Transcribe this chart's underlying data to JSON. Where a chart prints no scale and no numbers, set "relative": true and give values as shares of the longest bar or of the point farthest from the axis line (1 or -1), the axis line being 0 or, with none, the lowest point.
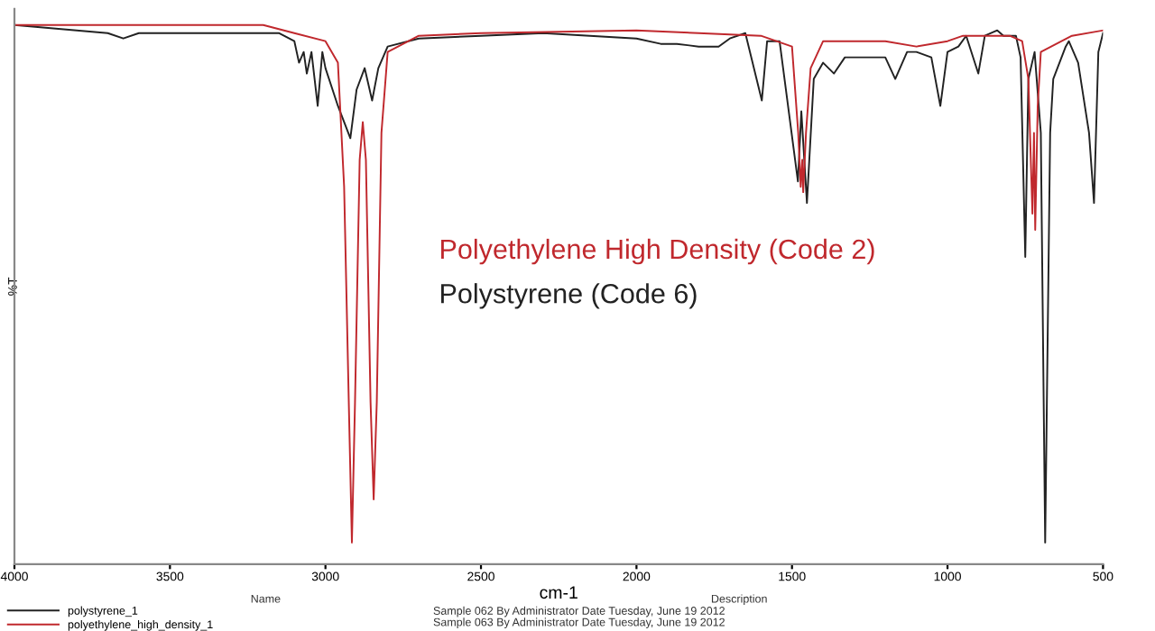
{
  "chart_data": {
    "type": "line",
    "relative": true,
    "xlabel": "cm-1",
    "ylabel": "%T",
    "xlim": [
      4000,
      500
    ],
    "xticks": [
      4000,
      3500,
      3000,
      2500,
      2000,
      1500,
      1000,
      500
    ],
    "legend": "bottom left",
    "grid": false,
    "marker": "none",
    "line_style": "solid",
    "series": [
      {
        "name": "polystyrene_1",
        "color": "#222222",
        "x": [
          4000,
          3700,
          3650,
          3600,
          3150,
          3100,
          3085,
          3070,
          3060,
          3045,
          3025,
          3010,
          3000,
          2960,
          2920,
          2900,
          2874,
          2850,
          2830,
          2800,
          2700,
          2500,
          2300,
          2000,
          1922,
          1870,
          1800,
          1736,
          1700,
          1650,
          1597,
          1580,
          1540,
          1481,
          1470,
          1452,
          1430,
          1400,
          1365,
          1330,
          1300,
          1200,
          1168,
          1130,
          1100,
          1052,
          1023,
          1000,
          965,
          940,
          901,
          880,
          840,
          820,
          780,
          765,
          750,
          740,
          720,
          700,
          686,
          670,
          660,
          620,
          610,
          580,
          545,
          529,
          515,
          500
        ],
        "values": [
          1,
          0.985,
          0.975,
          0.985,
          0.985,
          0.97,
          0.93,
          0.95,
          0.91,
          0.95,
          0.85,
          0.95,
          0.92,
          0.85,
          0.79,
          0.88,
          0.92,
          0.86,
          0.92,
          0.96,
          0.975,
          0.98,
          0.985,
          0.975,
          0.965,
          0.965,
          0.96,
          0.96,
          0.975,
          0.985,
          0.86,
          0.97,
          0.97,
          0.71,
          0.84,
          0.67,
          0.9,
          0.93,
          0.91,
          0.94,
          0.94,
          0.94,
          0.9,
          0.95,
          0.95,
          0.94,
          0.85,
          0.95,
          0.96,
          0.98,
          0.91,
          0.98,
          0.99,
          0.98,
          0.98,
          0.94,
          0.57,
          0.9,
          0.95,
          0.8,
          0.04,
          0.8,
          0.9,
          0.96,
          0.97,
          0.93,
          0.8,
          0.67,
          0.95,
          0.985
        ]
      },
      {
        "name": "polyethylene_high_density_1",
        "color": "#c0282d",
        "x": [
          4000,
          3500,
          3200,
          3100,
          3000,
          2960,
          2940,
          2925,
          2915,
          2905,
          2890,
          2880,
          2870,
          2855,
          2845,
          2835,
          2820,
          2800,
          2700,
          2500,
          2000,
          1800,
          1600,
          1500,
          1480,
          1472,
          1467,
          1464,
          1455,
          1440,
          1400,
          1300,
          1200,
          1100,
          1000,
          950,
          800,
          760,
          740,
          727,
          722,
          718,
          710,
          700,
          600,
          500
        ],
        "values": [
          1,
          1,
          1,
          0.985,
          0.97,
          0.93,
          0.7,
          0.3,
          0.04,
          0.3,
          0.75,
          0.82,
          0.75,
          0.3,
          0.12,
          0.3,
          0.8,
          0.95,
          0.98,
          0.985,
          0.99,
          0.985,
          0.98,
          0.96,
          0.8,
          0.7,
          0.75,
          0.69,
          0.8,
          0.92,
          0.97,
          0.97,
          0.97,
          0.96,
          0.97,
          0.98,
          0.98,
          0.97,
          0.9,
          0.65,
          0.8,
          0.62,
          0.85,
          0.95,
          0.98,
          0.99
        ]
      }
    ],
    "annotations": [
      "Polyethylene High Density (Code 2)",
      "Polystyrene (Code 6)",
      "Name",
      "Description",
      "Sample 062 By Administrator Date Tuesday, June 19 2012",
      "Sample 063 By Administrator Date Tuesday, June 19 2012"
    ]
  }
}
